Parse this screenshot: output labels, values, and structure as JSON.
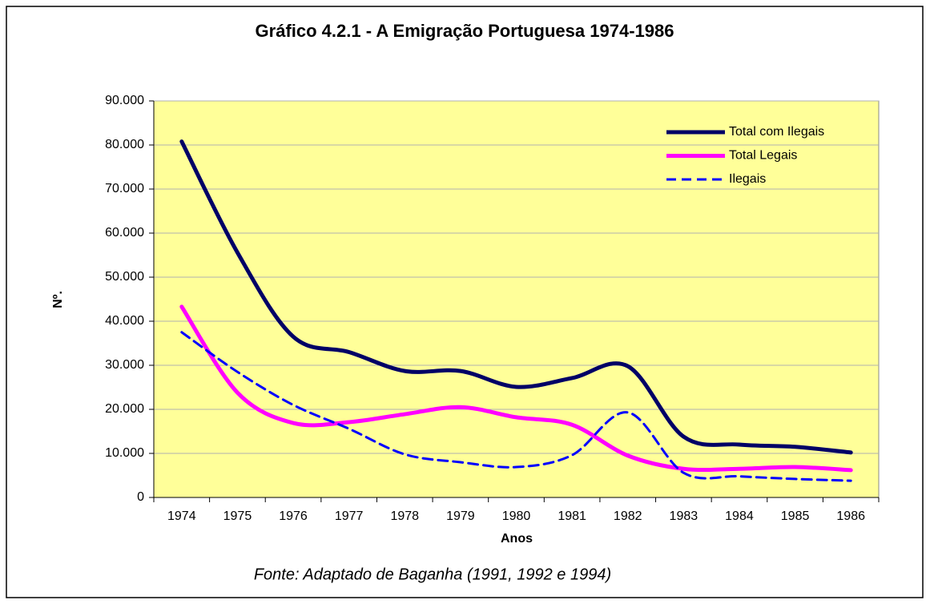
{
  "chart_data": {
    "type": "line",
    "title": "Gráfico 4.2.1 - A Emigração Portuguesa 1974-1986",
    "xlabel": "Anos",
    "ylabel": "Nº.",
    "source": "Fonte: Adaptado de Baganha (1991, 1992 e 1994)",
    "categories": [
      "1974",
      "1975",
      "1976",
      "1977",
      "1978",
      "1979",
      "1980",
      "1981",
      "1982",
      "1983",
      "1984",
      "1985",
      "1986"
    ],
    "series": [
      {
        "name": "Total com Ilegais",
        "color": "#000066",
        "dash": false,
        "values": [
          80800,
          55600,
          36500,
          33000,
          28700,
          28700,
          25100,
          27100,
          29800,
          13800,
          12000,
          11500,
          10200
        ]
      },
      {
        "name": "Total Legais",
        "color": "#ff00ff",
        "dash": false,
        "values": [
          43300,
          23800,
          16900,
          17100,
          18900,
          20500,
          18200,
          16500,
          9500,
          6500,
          6500,
          6900,
          6200
        ]
      },
      {
        "name": "Ilegais",
        "color": "#0000ff",
        "dash": true,
        "values": [
          37500,
          28500,
          21000,
          15600,
          9800,
          8000,
          6900,
          9600,
          19300,
          5600,
          4800,
          4200,
          3800
        ]
      }
    ],
    "ylim": [
      0,
      90000
    ],
    "yticks": [
      0,
      {
        "value": 10000,
        "label": "10.000"
      },
      {
        "value": 20000,
        "label": "20.000"
      },
      {
        "value": 30000,
        "label": "30.000"
      },
      {
        "value": 40000,
        "label": "40.000"
      },
      {
        "value": 50000,
        "label": "50.000"
      },
      {
        "value": 60000,
        "label": "60.000"
      },
      {
        "value": 70000,
        "label": "70.000"
      },
      {
        "value": 80000,
        "label": "80.000"
      },
      {
        "value": 90000,
        "label": "90.000"
      }
    ],
    "grid": true,
    "legend": "upper right",
    "background": "#ffff99"
  }
}
